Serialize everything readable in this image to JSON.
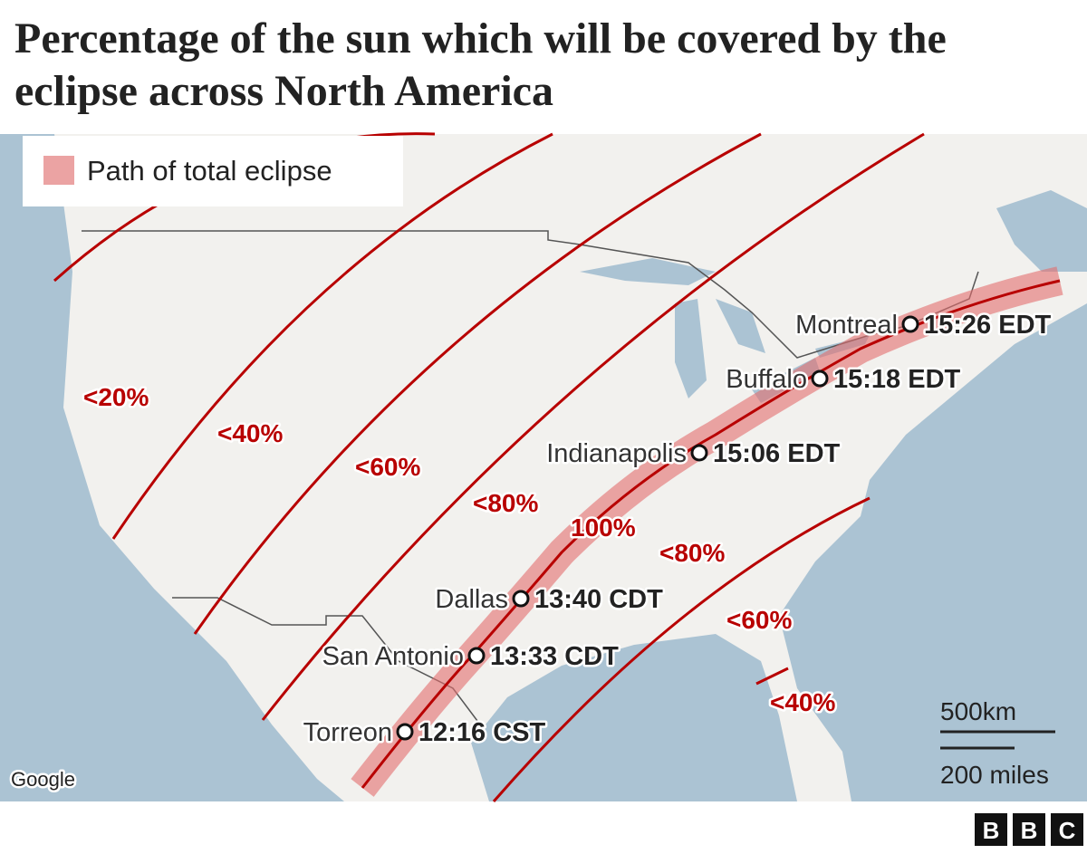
{
  "title": "Percentage of the sun which will be covered by the eclipse across North America",
  "legend": {
    "label": "Path of total eclipse"
  },
  "zone_labels": [
    "<20%",
    "<40%",
    "<60%",
    "<80%",
    "100%",
    "<80%",
    "<60%",
    "<40%"
  ],
  "cities": [
    {
      "name": "Montreal",
      "time": "15:26 EDT"
    },
    {
      "name": "Buffalo",
      "time": "15:18 EDT"
    },
    {
      "name": "Indianapolis",
      "time": "15:06 EDT"
    },
    {
      "name": "Dallas",
      "time": "13:40 CDT"
    },
    {
      "name": "San Antonio",
      "time": "13:33 CDT"
    },
    {
      "name": "Torreon",
      "time": "12:16 CST"
    }
  ],
  "scale": {
    "km": "500km",
    "miles": "200 miles"
  },
  "attribution": "Google",
  "logo": [
    "B",
    "B",
    "C"
  ]
}
